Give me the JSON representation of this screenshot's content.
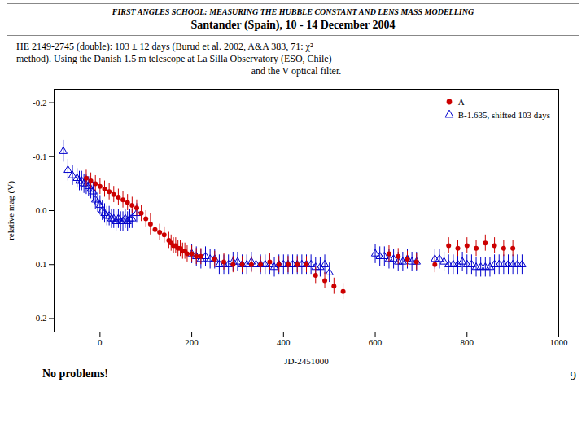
{
  "chart_data": {
    "type": "scatter",
    "title": "FIRST ANGLES SCHOOL: MEASURING THE HUBBLE CONSTANT AND LENS MASS MODELLING",
    "subtitle": "Santander (Spain), 10 - 14 December 2004",
    "annotations": [
      "HE 2149-2745 (double): 103 ± 12 days (Burud et al. 2002, A&A 383, 71: χ²",
      "method). Using the Danish 1.5 m telescope at La Silla Observatory (ESO, Chile)",
      "and the V optical filter.",
      "No problems!",
      "9"
    ],
    "xlabel": "JD-2451000",
    "ylabel": "relative mag (V)",
    "xlim": [
      -100,
      1000
    ],
    "ylim": [
      0.225,
      -0.225
    ],
    "xticks": [
      0,
      200,
      400,
      600,
      800,
      1000
    ],
    "yticks": [
      -0.2,
      -0.1,
      {
        "value": 0,
        "label": "0.0"
      },
      0.1,
      0.2
    ],
    "grid": false,
    "legend": "upper right",
    "series": [
      {
        "name": "A",
        "color": "#cc0000",
        "marker": "circle",
        "x": [
          -30,
          -20,
          -10,
          0,
          10,
          20,
          30,
          40,
          50,
          60,
          70,
          80,
          90,
          100,
          110,
          120,
          130,
          140,
          150,
          155,
          160,
          165,
          170,
          175,
          180,
          185,
          190,
          200,
          210,
          220,
          250,
          270,
          290,
          310,
          330,
          350,
          370,
          390,
          410,
          430,
          450,
          470,
          490,
          510,
          530,
          630,
          650,
          670,
          690,
          730,
          760,
          780,
          800,
          820,
          840,
          860,
          880,
          900
        ],
        "values": [
          -0.06,
          -0.055,
          -0.05,
          -0.045,
          -0.04,
          -0.035,
          -0.03,
          -0.025,
          -0.02,
          -0.015,
          -0.01,
          -0.005,
          0.005,
          0.015,
          0.025,
          0.035,
          0.04,
          0.045,
          0.055,
          0.06,
          0.065,
          0.065,
          0.07,
          0.07,
          0.075,
          0.075,
          0.08,
          0.08,
          0.085,
          0.085,
          0.09,
          0.095,
          0.1,
          0.1,
          0.1,
          0.1,
          0.095,
          0.1,
          0.1,
          0.1,
          0.1,
          0.12,
          0.13,
          0.14,
          0.15,
          0.08,
          0.085,
          0.09,
          0.095,
          0.1,
          0.065,
          0.07,
          0.065,
          0.07,
          0.06,
          0.065,
          0.07,
          0.07
        ],
        "yerr": [
          0.015,
          0.015,
          0.015,
          0.015,
          0.015,
          0.015,
          0.015,
          0.015,
          0.015,
          0.015,
          0.015,
          0.015,
          0.015,
          0.015,
          0.02,
          0.02,
          0.015,
          0.015,
          0.015,
          0.015,
          0.015,
          0.015,
          0.015,
          0.015,
          0.015,
          0.015,
          0.015,
          0.015,
          0.015,
          0.015,
          0.015,
          0.015,
          0.015,
          0.015,
          0.015,
          0.015,
          0.015,
          0.015,
          0.015,
          0.015,
          0.015,
          0.015,
          0.015,
          0.015,
          0.015,
          0.015,
          0.015,
          0.015,
          0.015,
          0.015,
          0.015,
          0.015,
          0.015,
          0.015,
          0.015,
          0.015,
          0.015,
          0.015
        ]
      },
      {
        "name": "B-1.635, shifted 103 days",
        "color": "#0000cc",
        "marker": "triangle-open",
        "x": [
          -80,
          -70,
          -60,
          -50,
          -45,
          -40,
          -35,
          -30,
          -25,
          -20,
          -15,
          -10,
          -5,
          0,
          5,
          10,
          15,
          20,
          25,
          30,
          35,
          40,
          45,
          50,
          55,
          60,
          65,
          70,
          80,
          200,
          210,
          220,
          230,
          240,
          250,
          260,
          270,
          280,
          290,
          300,
          310,
          320,
          330,
          340,
          350,
          360,
          370,
          380,
          390,
          400,
          410,
          420,
          430,
          440,
          450,
          460,
          470,
          480,
          490,
          500,
          600,
          610,
          620,
          630,
          640,
          650,
          660,
          670,
          680,
          690,
          730,
          740,
          750,
          760,
          770,
          780,
          790,
          800,
          810,
          820,
          830,
          840,
          850,
          860,
          870,
          880,
          890,
          900,
          910,
          920
        ],
        "values": [
          -0.11,
          -0.075,
          -0.065,
          -0.06,
          -0.055,
          -0.055,
          -0.05,
          -0.048,
          -0.045,
          -0.04,
          -0.035,
          -0.02,
          -0.015,
          -0.01,
          0.0,
          0.005,
          0.01,
          0.01,
          0.015,
          0.015,
          0.02,
          0.015,
          0.02,
          0.02,
          0.015,
          0.02,
          0.015,
          0.015,
          0.005,
          0.08,
          0.085,
          0.09,
          0.085,
          0.09,
          0.09,
          0.1,
          0.1,
          0.1,
          0.095,
          0.095,
          0.1,
          0.1,
          0.095,
          0.1,
          0.1,
          0.1,
          0.1,
          0.105,
          0.1,
          0.1,
          0.1,
          0.1,
          0.1,
          0.1,
          0.1,
          0.1,
          0.105,
          0.105,
          0.1,
          0.115,
          0.08,
          0.085,
          0.085,
          0.09,
          0.09,
          0.095,
          0.095,
          0.09,
          0.095,
          0.095,
          0.09,
          0.09,
          0.095,
          0.1,
          0.1,
          0.1,
          0.095,
          0.1,
          0.1,
          0.105,
          0.105,
          0.105,
          0.105,
          0.1,
          0.1,
          0.1,
          0.1,
          0.1,
          0.1,
          0.1
        ],
        "yerr": [
          0.02,
          0.02,
          0.018,
          0.018,
          0.018,
          0.018,
          0.018,
          0.018,
          0.018,
          0.018,
          0.018,
          0.018,
          0.018,
          0.018,
          0.018,
          0.018,
          0.018,
          0.018,
          0.018,
          0.018,
          0.018,
          0.018,
          0.018,
          0.018,
          0.018,
          0.018,
          0.018,
          0.018,
          0.018,
          0.018,
          0.018,
          0.018,
          0.018,
          0.018,
          0.018,
          0.018,
          0.018,
          0.018,
          0.018,
          0.018,
          0.018,
          0.018,
          0.018,
          0.018,
          0.018,
          0.018,
          0.018,
          0.018,
          0.018,
          0.018,
          0.018,
          0.018,
          0.018,
          0.018,
          0.018,
          0.018,
          0.018,
          0.018,
          0.018,
          0.018,
          0.018,
          0.018,
          0.018,
          0.018,
          0.018,
          0.018,
          0.018,
          0.018,
          0.018,
          0.018,
          0.018,
          0.018,
          0.018,
          0.018,
          0.018,
          0.018,
          0.018,
          0.018,
          0.018,
          0.018,
          0.018,
          0.018,
          0.018,
          0.018,
          0.018,
          0.018,
          0.018,
          0.018,
          0.018,
          0.018
        ]
      }
    ]
  }
}
